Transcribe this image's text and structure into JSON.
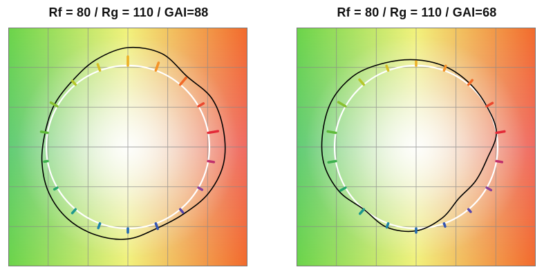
{
  "panels": [
    {
      "title": "Rf = 80  /  Rg = 110  /  GAI=88",
      "test_radii": [
        1.19,
        1.19,
        1.13,
        1.22,
        1.22,
        1.14,
        1.06,
        1.04,
        1.03,
        1.07,
        1.12,
        1.15,
        1.15,
        1.13,
        1.06,
        1.07,
        1.14,
        1.19
      ],
      "arrow_len": [
        0.12,
        0.07,
        0.11,
        0.1,
        0.11,
        0.08,
        0.06,
        0.09,
        0.08,
        0.04,
        0.04,
        0.06,
        0.06,
        0.05,
        0.07,
        0.05,
        0.05,
        0.07
      ]
    },
    {
      "title": "Rf = 80  /  Rg = 110  /  GAI=68",
      "test_radii": [
        1.0,
        1.0,
        1.02,
        1.05,
        1.07,
        1.1,
        1.16,
        1.18,
        1.16,
        1.15,
        1.09,
        1.0,
        1.05,
        1.03,
        0.93,
        0.82,
        0.84,
        0.88
      ],
      "arrow_len": [
        0.1,
        0.08,
        0.07,
        0.06,
        0.05,
        0.06,
        0.08,
        0.1,
        0.1,
        0.09,
        0.07,
        0.07,
        0.05,
        0.05,
        0.04,
        0.04,
        0.06,
        0.07
      ]
    }
  ],
  "colors": {
    "test_outline": "#000000",
    "reference_circle": "#ffffff",
    "grid": "#888888"
  }
}
